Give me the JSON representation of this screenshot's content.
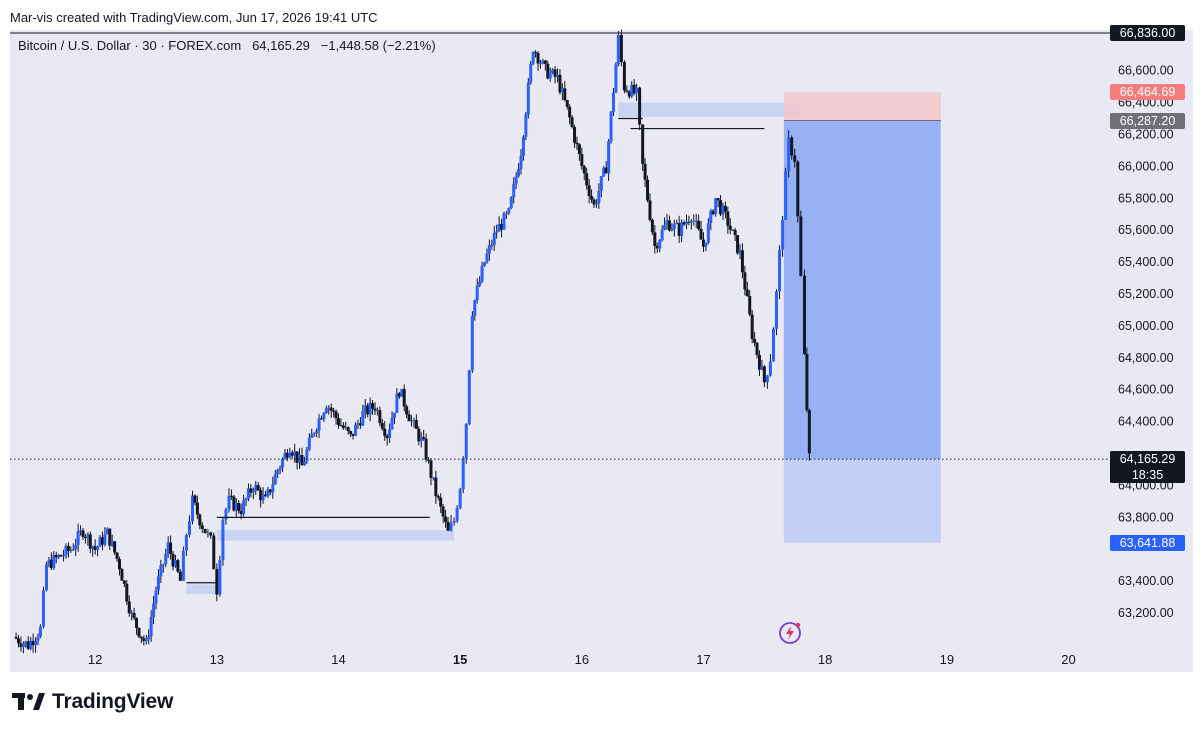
{
  "caption": "Mar-vis created with TradingView.com, Jun 17, 2026 19:41 UTC",
  "symbol_line": {
    "name": "Bitcoin / U.S. Dollar · 30 · FOREX.com",
    "last": "64,165.29",
    "change": "−1,448.58 (−2.21%)"
  },
  "brand": "TradingView",
  "colors": {
    "background": "#e9e9f4",
    "candle_up": "#2962ff",
    "candle_down": "#131722",
    "target_zone": "#7b9ef5",
    "stop_zone": "#f4c6cc",
    "demand_zone": "#c8d4f2",
    "label_dark": "#131722",
    "label_stop": "#f77c80",
    "label_entry": "#6f6f76",
    "label_target": "#2962ff"
  },
  "price_labels": {
    "top": "66,836.00",
    "stop": "66,464.69",
    "entry": "66,287.20",
    "last_price": "64,165.29",
    "countdown": "18:35",
    "target": "63,641.88"
  },
  "chart_data": {
    "type": "candlestick",
    "title": "Bitcoin / U.S. Dollar · 30 · FOREX.com",
    "x_ticks": [
      "12",
      "13",
      "14",
      "15",
      "16",
      "17",
      "18",
      "19",
      "20"
    ],
    "x_tick_positions": [
      12,
      13,
      14,
      15,
      16,
      17,
      18,
      19,
      20
    ],
    "x_bold_tick": "15",
    "y_ticks": [
      "66,600.00",
      "66,400.00",
      "66,200.00",
      "66,000.00",
      "65,800.00",
      "65,600.00",
      "65,400.00",
      "65,200.00",
      "65,000.00",
      "64,800.00",
      "64,600.00",
      "64,400.00",
      "64,000.00",
      "63,800.00",
      "63,400.00",
      "63,200.00"
    ],
    "y_tick_values": [
      66600,
      66400,
      66200,
      66000,
      65800,
      65600,
      65400,
      65200,
      65000,
      64800,
      64600,
      64400,
      64000,
      63800,
      63400,
      63200
    ],
    "ylim": [
      63000,
      66836
    ],
    "xlim": [
      11.3,
      20.3
    ],
    "grid": false,
    "close_path": [
      [
        11.33,
        63050
      ],
      [
        11.45,
        63000
      ],
      [
        11.55,
        63100
      ],
      [
        11.6,
        63500
      ],
      [
        11.7,
        63550
      ],
      [
        11.8,
        63600
      ],
      [
        11.9,
        63720
      ],
      [
        12.0,
        63600
      ],
      [
        12.1,
        63700
      ],
      [
        12.2,
        63500
      ],
      [
        12.3,
        63180
      ],
      [
        12.42,
        63000
      ],
      [
        12.5,
        63350
      ],
      [
        12.6,
        63620
      ],
      [
        12.7,
        63400
      ],
      [
        12.75,
        63700
      ],
      [
        12.8,
        63900
      ],
      [
        12.88,
        63750
      ],
      [
        12.95,
        63650
      ],
      [
        13.0,
        63350
      ],
      [
        13.05,
        63800
      ],
      [
        13.1,
        63900
      ],
      [
        13.2,
        63850
      ],
      [
        13.3,
        64000
      ],
      [
        13.4,
        63900
      ],
      [
        13.5,
        64100
      ],
      [
        13.6,
        64250
      ],
      [
        13.7,
        64120
      ],
      [
        13.8,
        64350
      ],
      [
        13.9,
        64520
      ],
      [
        14.0,
        64400
      ],
      [
        14.1,
        64300
      ],
      [
        14.2,
        64450
      ],
      [
        14.3,
        64500
      ],
      [
        14.4,
        64320
      ],
      [
        14.5,
        64600
      ],
      [
        14.6,
        64400
      ],
      [
        14.7,
        64250
      ],
      [
        14.8,
        63950
      ],
      [
        14.9,
        63700
      ],
      [
        14.95,
        63780
      ],
      [
        15.0,
        64000
      ],
      [
        15.05,
        64400
      ],
      [
        15.1,
        65100
      ],
      [
        15.2,
        65400
      ],
      [
        15.3,
        65600
      ],
      [
        15.4,
        65700
      ],
      [
        15.5,
        66100
      ],
      [
        15.6,
        66750
      ],
      [
        15.7,
        66600
      ],
      [
        15.8,
        66550
      ],
      [
        15.9,
        66300
      ],
      [
        16.0,
        66000
      ],
      [
        16.1,
        65750
      ],
      [
        16.2,
        66000
      ],
      [
        16.3,
        66800
      ],
      [
        16.35,
        66500
      ],
      [
        16.45,
        66450
      ],
      [
        16.5,
        66000
      ],
      [
        16.6,
        65500
      ],
      [
        16.7,
        65650
      ],
      [
        16.8,
        65600
      ],
      [
        16.9,
        65700
      ],
      [
        17.0,
        65500
      ],
      [
        17.1,
        65800
      ],
      [
        17.2,
        65650
      ],
      [
        17.3,
        65450
      ],
      [
        17.4,
        64950
      ],
      [
        17.5,
        64650
      ],
      [
        17.55,
        64800
      ],
      [
        17.6,
        65200
      ],
      [
        17.65,
        65700
      ],
      [
        17.7,
        66150
      ],
      [
        17.75,
        66050
      ],
      [
        17.8,
        65300
      ],
      [
        17.83,
        64800
      ],
      [
        17.87,
        64165
      ]
    ],
    "annotations": [
      {
        "type": "demand_zone",
        "x": [
          13.0,
          14.95
        ],
        "y": [
          63655,
          63720
        ]
      },
      {
        "type": "demand_zone",
        "x": [
          12.75,
          13.0
        ],
        "y": [
          63320,
          63380
        ]
      },
      {
        "type": "supply_zone",
        "x": [
          16.3,
          17.8
        ],
        "y": [
          66310,
          66400
        ]
      },
      {
        "type": "level_line",
        "x": [
          13.0,
          14.75
        ],
        "y": 63800
      },
      {
        "type": "level_line",
        "x": [
          12.75,
          13.0
        ],
        "y": 63390
      },
      {
        "type": "level_line",
        "x": [
          16.4,
          17.5
        ],
        "y": 66237
      },
      {
        "type": "level_line",
        "x": [
          16.3,
          16.5
        ],
        "y": 66300
      },
      {
        "type": "position_short",
        "x": [
          17.66,
          18.95
        ],
        "entry": 66287.2,
        "stop": 66464.69,
        "target": 63641.88
      }
    ]
  }
}
